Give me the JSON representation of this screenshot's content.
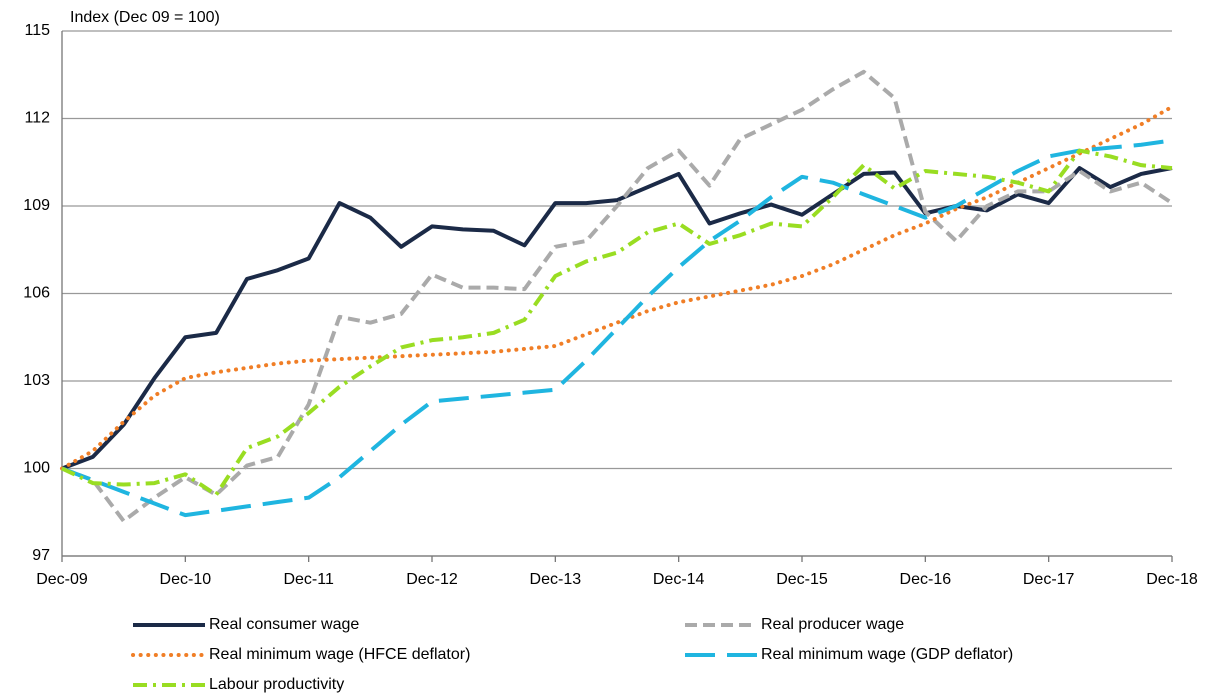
{
  "chart_data": {
    "type": "line",
    "y_axis_label": "Index (Dec 09 = 100)",
    "categories": [
      "Dec-09",
      null,
      null,
      null,
      "Dec-10",
      null,
      null,
      null,
      "Dec-11",
      null,
      null,
      null,
      "Dec-12",
      null,
      null,
      null,
      "Dec-13",
      null,
      null,
      null,
      "Dec-14",
      null,
      null,
      null,
      "Dec-15",
      null,
      null,
      null,
      "Dec-16",
      null,
      null,
      null,
      "Dec-17",
      null,
      null,
      null,
      "Dec-18"
    ],
    "ylim": [
      97,
      115
    ],
    "yticks": [
      97,
      100,
      103,
      106,
      109,
      112,
      115
    ],
    "grid": true,
    "legend": "bottom",
    "series": [
      {
        "name": "Real consumer wage",
        "color": "#1b2a47",
        "style": "solid",
        "values": [
          100,
          100.4,
          101.5,
          103.1,
          104.5,
          104.65,
          106.5,
          106.8,
          107.2,
          109.1,
          108.6,
          107.6,
          108.3,
          108.2,
          108.15,
          107.65,
          109.1,
          109.1,
          109.2,
          109.65,
          110.1,
          108.4,
          108.75,
          109.05,
          108.7,
          109.4,
          110.1,
          110.15,
          108.75,
          109.0,
          108.85,
          109.4,
          109.1,
          110.3,
          109.65,
          110.1,
          110.3
        ]
      },
      {
        "name": "Real producer wage",
        "color": "#aaaaaa",
        "style": "dashed",
        "values": [
          100,
          99.6,
          98.2,
          99.0,
          99.7,
          99.1,
          100.1,
          100.4,
          102.2,
          105.2,
          105.0,
          105.3,
          106.65,
          106.2,
          106.2,
          106.15,
          107.6,
          107.8,
          109.0,
          110.3,
          110.9,
          109.7,
          111.3,
          111.8,
          112.3,
          113.0,
          113.6,
          112.7,
          108.8,
          107.8,
          109.0,
          109.5,
          109.5,
          110.2,
          109.5,
          109.8,
          109.1
        ]
      },
      {
        "name": "Real minimum wage (HFCE deflator)",
        "color": "#f07e26",
        "style": "dotted",
        "values": [
          100,
          100.6,
          101.6,
          102.5,
          103.1,
          103.3,
          103.45,
          103.6,
          103.7,
          103.75,
          103.8,
          103.85,
          103.9,
          103.95,
          104.0,
          104.1,
          104.2,
          104.6,
          105.0,
          105.4,
          105.7,
          105.9,
          106.1,
          106.3,
          106.6,
          107.0,
          107.5,
          108.0,
          108.4,
          108.9,
          109.3,
          109.8,
          110.3,
          110.8,
          111.3,
          111.8,
          112.4
        ]
      },
      {
        "name": "Real minimum wage (GDP deflator)",
        "color": "#1fb5e0",
        "style": "long-dashed",
        "values": [
          100,
          99.6,
          99.2,
          98.8,
          98.4,
          98.55,
          98.7,
          98.85,
          99.0,
          99.7,
          100.6,
          101.5,
          102.3,
          102.4,
          102.5,
          102.6,
          102.7,
          103.7,
          104.8,
          105.9,
          106.9,
          107.8,
          108.5,
          109.3,
          110.0,
          109.8,
          109.4,
          109.0,
          108.6,
          109.0,
          109.6,
          110.2,
          110.7,
          110.9,
          111.0,
          111.1,
          111.25
        ]
      },
      {
        "name": "Labour productivity",
        "color": "#99dd22",
        "style": "dash-dot",
        "values": [
          100,
          99.5,
          99.45,
          99.5,
          99.8,
          99.1,
          100.7,
          101.1,
          101.9,
          102.8,
          103.5,
          104.15,
          104.4,
          104.5,
          104.65,
          105.1,
          106.6,
          107.1,
          107.4,
          108.1,
          108.4,
          107.7,
          108.0,
          108.4,
          108.3,
          109.3,
          110.4,
          109.6,
          110.2,
          110.1,
          110.0,
          109.8,
          109.5,
          110.9,
          110.7,
          110.4,
          110.3
        ]
      }
    ]
  }
}
